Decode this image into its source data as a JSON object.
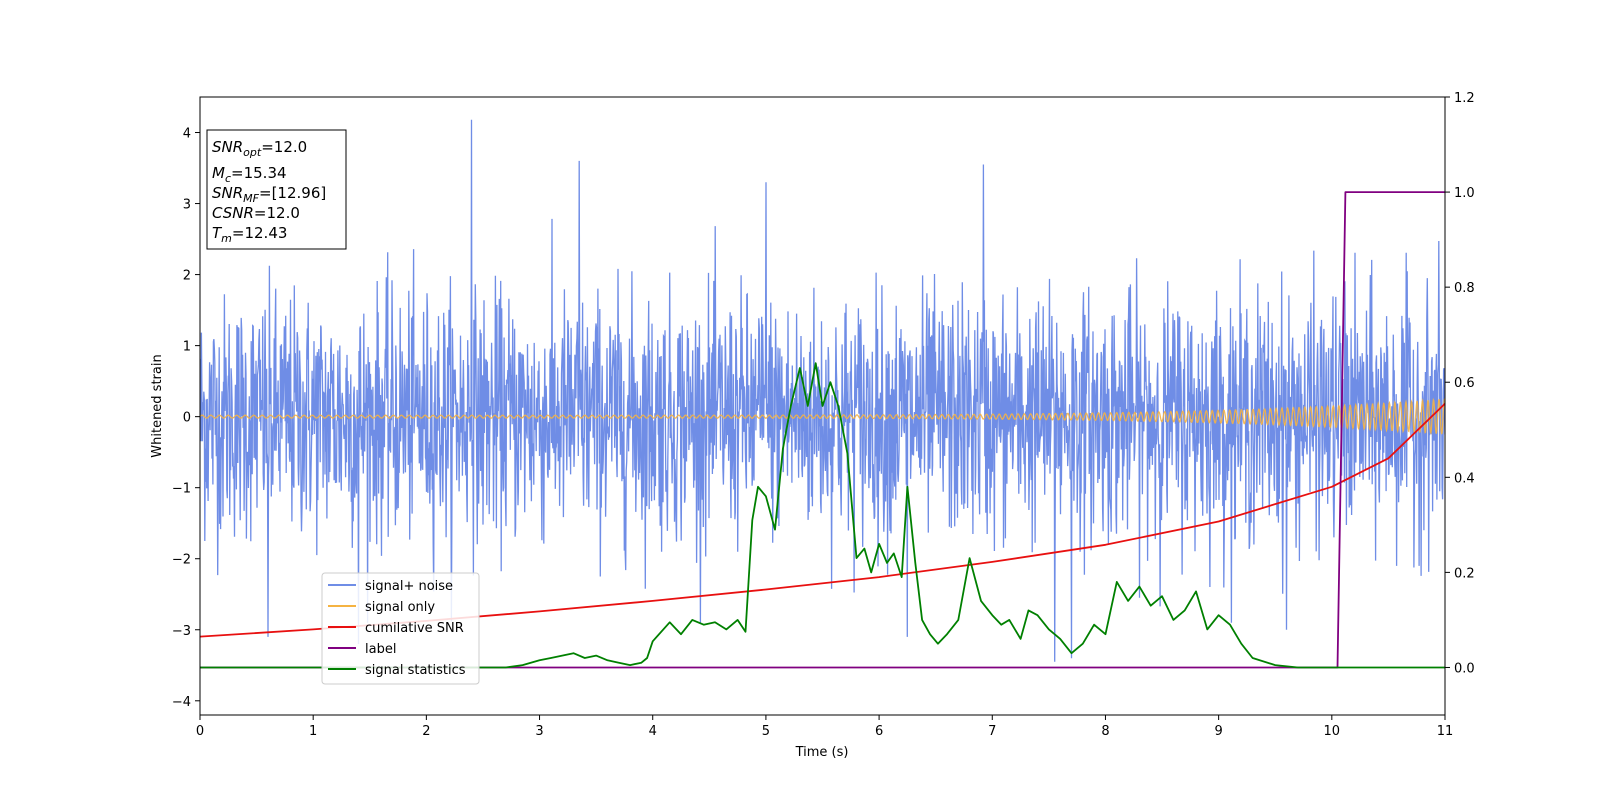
{
  "chart_data": {
    "type": "line",
    "xlabel": "Time (s)",
    "ylabel": "Whitened strain",
    "xlim": [
      0,
      11
    ],
    "ylim": [
      -4.2,
      4.5
    ],
    "y2lim": [
      -0.1,
      1.2
    ],
    "x_ticks": [
      "0",
      "1",
      "2",
      "3",
      "4",
      "5",
      "6",
      "7",
      "8",
      "9",
      "10",
      "11"
    ],
    "y_ticks": [
      "4",
      "3",
      "2",
      "1",
      "0",
      "−1",
      "−2",
      "−3",
      "−4"
    ],
    "y_tick_values": [
      4,
      3,
      2,
      1,
      0,
      -1,
      -2,
      -3,
      -4
    ],
    "y2_ticks": [
      "1.2",
      "1.0",
      "0.8",
      "0.6",
      "0.4",
      "0.2",
      "0.0"
    ],
    "y2_tick_values": [
      1.2,
      1.0,
      0.8,
      0.6,
      0.4,
      0.2,
      0.0
    ],
    "grid": false,
    "legend_position": "lower-left",
    "info_box": {
      "line1_base": "SNR",
      "line1_sub": "opt",
      "line1_value": "=12.0",
      "line2_base": "M",
      "line2_sub": "c",
      "line2_value": "=15.34",
      "line3_base": "SNR",
      "line3_sub": "MF",
      "line3_value": "=[12.96]",
      "line4_base": "CSNR",
      "line4_value": "=12.0",
      "line5_base": "T",
      "line5_sub": "m",
      "line5_value": "=12.43"
    },
    "series": [
      {
        "name": "signal+ noise",
        "color": "#6f8de6",
        "axis": "left",
        "description_values": "white noise, amplitude about ±2, peaks to 4.2",
        "peaks": [
          [
            2.4,
            4.18
          ],
          [
            3.35,
            3.6
          ],
          [
            6.92,
            3.55
          ],
          [
            5.0,
            3.3
          ],
          [
            6.25,
            -3.1
          ],
          [
            7.55,
            -3.45
          ],
          [
            7.7,
            -3.4
          ],
          [
            0.6,
            -3.1
          ],
          [
            1.4,
            -3.2
          ],
          [
            9.6,
            -3.0
          ]
        ]
      },
      {
        "name": "signal only",
        "color": "#f5b342",
        "axis": "left",
        "amplitude_start": 0.02,
        "amplitude_end": 0.25
      },
      {
        "name": "cumilative SNR",
        "color": "#e81010",
        "axis": "right",
        "x": [
          0,
          1,
          2,
          3,
          4,
          5,
          6,
          7,
          8,
          9,
          10,
          10.5,
          11
        ],
        "y": [
          0.065,
          0.08,
          0.098,
          0.118,
          0.14,
          0.164,
          0.19,
          0.222,
          0.258,
          0.307,
          0.38,
          0.44,
          0.555
        ]
      },
      {
        "name": "label",
        "color": "#800080",
        "axis": "right",
        "x": [
          0,
          10.05,
          10.12,
          11
        ],
        "y": [
          0.0,
          0.0,
          1.0,
          1.0
        ]
      },
      {
        "name": "signal statistics",
        "color": "#008000",
        "axis": "right",
        "x": [
          0,
          1,
          2,
          2.7,
          2.85,
          3.0,
          3.1,
          3.2,
          3.3,
          3.4,
          3.5,
          3.6,
          3.7,
          3.8,
          3.9,
          3.95,
          4.0,
          4.15,
          4.25,
          4.35,
          4.45,
          4.55,
          4.65,
          4.75,
          4.82,
          4.88,
          4.93,
          5.0,
          5.08,
          5.15,
          5.22,
          5.3,
          5.37,
          5.44,
          5.5,
          5.57,
          5.64,
          5.72,
          5.8,
          5.87,
          5.93,
          6.0,
          6.07,
          6.13,
          6.2,
          6.25,
          6.32,
          6.38,
          6.45,
          6.52,
          6.6,
          6.7,
          6.8,
          6.9,
          7.0,
          7.08,
          7.15,
          7.25,
          7.32,
          7.4,
          7.5,
          7.6,
          7.7,
          7.8,
          7.9,
          8.0,
          8.1,
          8.2,
          8.3,
          8.4,
          8.5,
          8.6,
          8.7,
          8.8,
          8.9,
          9.0,
          9.1,
          9.2,
          9.3,
          9.5,
          9.7,
          10.0,
          10.1,
          11.0
        ],
        "y": [
          0.0,
          0.0,
          0.0,
          0.0,
          0.005,
          0.015,
          0.02,
          0.025,
          0.03,
          0.02,
          0.025,
          0.015,
          0.01,
          0.005,
          0.01,
          0.02,
          0.055,
          0.095,
          0.07,
          0.1,
          0.09,
          0.095,
          0.08,
          0.1,
          0.075,
          0.31,
          0.38,
          0.36,
          0.29,
          0.46,
          0.55,
          0.63,
          0.55,
          0.64,
          0.55,
          0.6,
          0.55,
          0.45,
          0.23,
          0.25,
          0.2,
          0.26,
          0.22,
          0.24,
          0.19,
          0.38,
          0.22,
          0.1,
          0.07,
          0.05,
          0.07,
          0.1,
          0.23,
          0.14,
          0.11,
          0.09,
          0.1,
          0.06,
          0.12,
          0.11,
          0.08,
          0.06,
          0.03,
          0.05,
          0.09,
          0.07,
          0.18,
          0.14,
          0.17,
          0.13,
          0.15,
          0.1,
          0.12,
          0.16,
          0.08,
          0.11,
          0.09,
          0.05,
          0.02,
          0.005,
          0.0,
          0.0,
          0.0,
          0.0
        ]
      }
    ]
  }
}
